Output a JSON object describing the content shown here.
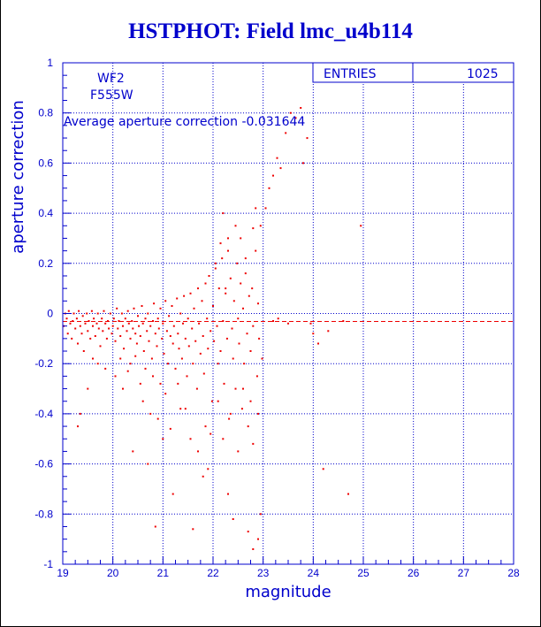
{
  "page": {
    "title": "HSTPHOT: Field lmc_u4b114"
  },
  "stats": {
    "label": "ENTRIES",
    "value": "1025"
  },
  "annotations": {
    "camera": "WF2",
    "filter": "F555W",
    "average": "Average aperture correction  -0.031644"
  },
  "colors": {
    "axis": "#0000cc",
    "points": "#ee0000",
    "average_line": "#ee0000"
  },
  "chart_data": {
    "type": "scatter",
    "title": "HSTPHOT: Field lmc_u4b114",
    "xlabel": "magnitude",
    "ylabel": "aperture correction",
    "xlim": [
      19,
      28
    ],
    "ylim": [
      -1,
      1
    ],
    "xticks": [
      "19",
      "20",
      "21",
      "22",
      "23",
      "24",
      "25",
      "26",
      "27",
      "28"
    ],
    "yticks": [
      "-1",
      "-0.8",
      "-0.6",
      "-0.4",
      "-0.2",
      "0",
      "0.2",
      "0.4",
      "0.6",
      "0.8",
      "1"
    ],
    "grid": true,
    "average_line": -0.031644,
    "entries": 1025,
    "points": [
      [
        19.02,
        -0.05
      ],
      [
        19.05,
        0.0
      ],
      [
        19.08,
        -0.02
      ],
      [
        19.1,
        -0.08
      ],
      [
        19.12,
        0.01
      ],
      [
        19.15,
        -0.04
      ],
      [
        19.18,
        -0.1
      ],
      [
        19.2,
        -0.03
      ],
      [
        19.22,
        0.0
      ],
      [
        19.25,
        -0.06
      ],
      [
        19.28,
        -0.02
      ],
      [
        19.3,
        -0.12
      ],
      [
        19.32,
        0.01
      ],
      [
        19.35,
        -0.05
      ],
      [
        19.38,
        -0.08
      ],
      [
        19.4,
        -0.01
      ],
      [
        19.42,
        -0.15
      ],
      [
        19.45,
        -0.04
      ],
      [
        19.48,
        0.0
      ],
      [
        19.5,
        -0.07
      ],
      [
        19.52,
        -0.03
      ],
      [
        19.55,
        -0.1
      ],
      [
        19.58,
        0.01
      ],
      [
        19.6,
        -0.05
      ],
      [
        19.62,
        -0.02
      ],
      [
        19.65,
        -0.09
      ],
      [
        19.68,
        -0.04
      ],
      [
        19.7,
        0.0
      ],
      [
        19.72,
        -0.06
      ],
      [
        19.75,
        -0.13
      ],
      [
        19.78,
        -0.02
      ],
      [
        19.8,
        -0.07
      ],
      [
        19.82,
        0.01
      ],
      [
        19.85,
        -0.04
      ],
      [
        19.88,
        -0.1
      ],
      [
        19.9,
        -0.03
      ],
      [
        19.92,
        -0.06
      ],
      [
        19.95,
        0.0
      ],
      [
        19.98,
        -0.08
      ],
      [
        20.0,
        -0.05
      ],
      [
        20.02,
        -0.02
      ],
      [
        20.05,
        -0.11
      ],
      [
        20.08,
        0.02
      ],
      [
        20.1,
        -0.06
      ],
      [
        20.12,
        -0.03
      ],
      [
        20.15,
        -0.09
      ],
      [
        20.18,
        0.0
      ],
      [
        20.2,
        -0.05
      ],
      [
        20.22,
        -0.14
      ],
      [
        20.25,
        -0.02
      ],
      [
        20.28,
        -0.07
      ],
      [
        20.3,
        0.01
      ],
      [
        20.32,
        -0.04
      ],
      [
        20.35,
        -0.1
      ],
      [
        20.38,
        -0.03
      ],
      [
        20.4,
        -0.06
      ],
      [
        20.42,
        0.02
      ],
      [
        20.45,
        -0.08
      ],
      [
        20.48,
        -0.12
      ],
      [
        20.5,
        -0.01
      ],
      [
        20.52,
        -0.05
      ],
      [
        20.55,
        -0.09
      ],
      [
        20.58,
        0.03
      ],
      [
        20.6,
        -0.04
      ],
      [
        20.62,
        -0.15
      ],
      [
        20.65,
        -0.02
      ],
      [
        20.68,
        -0.07
      ],
      [
        20.7,
        0.0
      ],
      [
        20.72,
        -0.11
      ],
      [
        20.75,
        -0.05
      ],
      [
        20.78,
        -0.18
      ],
      [
        20.8,
        -0.03
      ],
      [
        20.82,
        0.04
      ],
      [
        20.85,
        -0.08
      ],
      [
        20.88,
        -0.13
      ],
      [
        20.9,
        -0.02
      ],
      [
        20.92,
        -0.06
      ],
      [
        20.95,
        0.02
      ],
      [
        20.98,
        -0.1
      ],
      [
        21.0,
        -0.04
      ],
      [
        21.02,
        -0.16
      ],
      [
        21.05,
        0.05
      ],
      [
        21.08,
        -0.07
      ],
      [
        21.1,
        -0.2
      ],
      [
        21.12,
        -0.01
      ],
      [
        21.15,
        -0.09
      ],
      [
        21.18,
        0.03
      ],
      [
        21.2,
        -0.12
      ],
      [
        21.22,
        -0.05
      ],
      [
        21.25,
        -0.22
      ],
      [
        21.28,
        0.06
      ],
      [
        21.3,
        -0.08
      ],
      [
        21.32,
        -0.14
      ],
      [
        21.35,
        0.0
      ],
      [
        21.38,
        -0.18
      ],
      [
        21.4,
        -0.04
      ],
      [
        21.42,
        0.07
      ],
      [
        21.45,
        -0.1
      ],
      [
        21.48,
        -0.25
      ],
      [
        21.5,
        -0.02
      ],
      [
        21.52,
        -0.13
      ],
      [
        21.55,
        0.08
      ],
      [
        21.58,
        -0.06
      ],
      [
        21.6,
        -0.2
      ],
      [
        21.62,
        0.02
      ],
      [
        21.65,
        -0.11
      ],
      [
        21.68,
        -0.3
      ],
      [
        21.7,
        0.1
      ],
      [
        21.72,
        -0.04
      ],
      [
        21.75,
        -0.16
      ],
      [
        21.78,
        0.05
      ],
      [
        21.8,
        -0.09
      ],
      [
        21.82,
        -0.24
      ],
      [
        21.85,
        0.12
      ],
      [
        21.88,
        -0.02
      ],
      [
        21.9,
        -0.14
      ],
      [
        21.92,
        0.15
      ],
      [
        21.95,
        -0.07
      ],
      [
        21.98,
        -0.35
      ],
      [
        22.0,
        0.03
      ],
      [
        22.02,
        -0.11
      ],
      [
        22.05,
        0.18
      ],
      [
        22.08,
        -0.05
      ],
      [
        22.1,
        -0.2
      ],
      [
        22.12,
        0.1
      ],
      [
        22.15,
        -0.15
      ],
      [
        22.18,
        0.22
      ],
      [
        22.2,
        -0.03
      ],
      [
        22.22,
        -0.28
      ],
      [
        22.25,
        0.08
      ],
      [
        22.28,
        -0.1
      ],
      [
        22.3,
        0.3
      ],
      [
        22.32,
        -0.42
      ],
      [
        22.35,
        0.14
      ],
      [
        22.38,
        -0.06
      ],
      [
        22.4,
        -0.18
      ],
      [
        22.42,
        0.05
      ],
      [
        22.45,
        -0.3
      ],
      [
        22.48,
        0.2
      ],
      [
        22.5,
        -0.02
      ],
      [
        22.52,
        -0.12
      ],
      [
        22.55,
        0.12
      ],
      [
        22.58,
        -0.38
      ],
      [
        22.6,
        0.02
      ],
      [
        22.62,
        -0.2
      ],
      [
        22.65,
        0.16
      ],
      [
        22.68,
        -0.08
      ],
      [
        22.7,
        -0.45
      ],
      [
        22.72,
        0.07
      ],
      [
        22.75,
        -0.15
      ],
      [
        22.78,
        0.1
      ],
      [
        22.8,
        -0.05
      ],
      [
        22.85,
        0.25
      ],
      [
        22.88,
        -0.25
      ],
      [
        22.9,
        0.04
      ],
      [
        22.92,
        -0.1
      ],
      [
        22.95,
        0.35
      ],
      [
        22.98,
        -0.18
      ],
      [
        23.05,
        0.42
      ],
      [
        23.12,
        0.5
      ],
      [
        23.2,
        0.55
      ],
      [
        23.28,
        0.62
      ],
      [
        23.35,
        0.58
      ],
      [
        23.45,
        0.72
      ],
      [
        23.55,
        0.8
      ],
      [
        23.65,
        0.78
      ],
      [
        23.75,
        0.82
      ],
      [
        23.8,
        0.6
      ],
      [
        23.88,
        0.7
      ],
      [
        23.95,
        -0.04
      ],
      [
        24.0,
        -0.08
      ],
      [
        24.1,
        -0.12
      ],
      [
        24.2,
        -0.62
      ],
      [
        24.3,
        -0.07
      ],
      [
        24.6,
        -0.03
      ],
      [
        24.7,
        -0.72
      ],
      [
        24.95,
        0.35
      ],
      [
        23.2,
        -0.03
      ],
      [
        23.3,
        -0.02
      ],
      [
        23.5,
        -0.04
      ],
      [
        19.3,
        -0.45
      ],
      [
        19.35,
        -0.4
      ],
      [
        19.5,
        -0.3
      ],
      [
        20.2,
        -0.3
      ],
      [
        20.4,
        -0.55
      ],
      [
        20.7,
        -0.6
      ],
      [
        20.85,
        -0.85
      ],
      [
        21.0,
        -0.5
      ],
      [
        21.2,
        -0.72
      ],
      [
        21.35,
        -0.38
      ],
      [
        21.6,
        -0.86
      ],
      [
        21.8,
        -0.65
      ],
      [
        21.9,
        -0.62
      ],
      [
        22.3,
        -0.72
      ],
      [
        22.7,
        -0.87
      ],
      [
        22.8,
        -0.94
      ],
      [
        22.9,
        -0.9
      ],
      [
        22.95,
        -0.8
      ],
      [
        22.4,
        -0.82
      ],
      [
        22.8,
        -0.52
      ],
      [
        22.05,
        0.2
      ],
      [
        22.15,
        0.28
      ],
      [
        22.2,
        0.4
      ],
      [
        22.3,
        0.25
      ],
      [
        22.45,
        0.35
      ],
      [
        22.55,
        0.3
      ],
      [
        22.65,
        0.22
      ],
      [
        22.8,
        0.34
      ],
      [
        22.85,
        0.42
      ],
      [
        22.25,
        0.1
      ],
      [
        20.3,
        -0.23
      ],
      [
        20.55,
        -0.28
      ],
      [
        20.6,
        -0.35
      ],
      [
        20.75,
        -0.4
      ],
      [
        20.9,
        -0.42
      ],
      [
        21.05,
        -0.32
      ],
      [
        21.15,
        -0.46
      ],
      [
        21.3,
        -0.28
      ],
      [
        21.45,
        -0.38
      ],
      [
        21.55,
        -0.5
      ],
      [
        21.7,
        -0.55
      ],
      [
        21.85,
        -0.45
      ],
      [
        21.95,
        -0.48
      ],
      [
        22.1,
        -0.35
      ],
      [
        22.2,
        -0.5
      ],
      [
        22.35,
        -0.4
      ],
      [
        22.5,
        -0.55
      ],
      [
        22.6,
        -0.3
      ],
      [
        22.75,
        -0.35
      ],
      [
        22.9,
        -0.4
      ],
      [
        19.6,
        -0.18
      ],
      [
        19.7,
        -0.2
      ],
      [
        19.85,
        -0.22
      ],
      [
        20.05,
        -0.25
      ],
      [
        20.15,
        -0.18
      ],
      [
        20.35,
        -0.2
      ],
      [
        20.45,
        -0.17
      ],
      [
        20.65,
        -0.22
      ],
      [
        20.8,
        -0.25
      ],
      [
        20.95,
        -0.28
      ]
    ]
  }
}
